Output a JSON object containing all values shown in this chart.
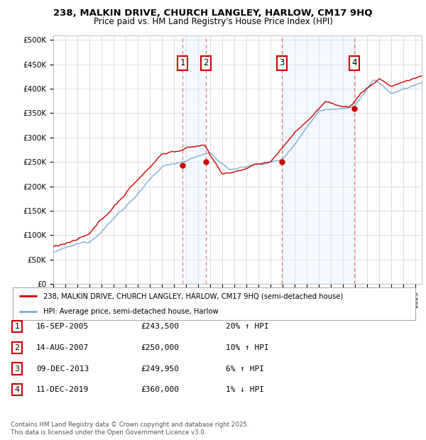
{
  "title1": "238, MALKIN DRIVE, CHURCH LANGLEY, HARLOW, CM17 9HQ",
  "title2": "Price paid vs. HM Land Registry's House Price Index (HPI)",
  "ylabel_ticks": [
    "£0",
    "£50K",
    "£100K",
    "£150K",
    "£200K",
    "£250K",
    "£300K",
    "£350K",
    "£400K",
    "£450K",
    "£500K"
  ],
  "ylim": [
    0,
    510000
  ],
  "xlim_start": 1995.0,
  "xlim_end": 2025.5,
  "legend_line1": "238, MALKIN DRIVE, CHURCH LANGLEY, HARLOW, CM17 9HQ (semi-detached house)",
  "legend_line2": "HPI: Average price, semi-detached house, Harlow",
  "transactions": [
    {
      "num": 1,
      "date": "16-SEP-2005",
      "price": "£243,500",
      "hpi": "20% ↑ HPI",
      "year": 2005.71
    },
    {
      "num": 2,
      "date": "14-AUG-2007",
      "price": "£250,000",
      "hpi": "10% ↑ HPI",
      "year": 2007.62
    },
    {
      "num": 3,
      "date": "09-DEC-2013",
      "price": "£249,950",
      "hpi": "6% ↑ HPI",
      "year": 2013.94
    },
    {
      "num": 4,
      "date": "11-DEC-2019",
      "price": "£360,000",
      "hpi": "1% ↓ HPI",
      "year": 2019.94
    }
  ],
  "transaction_prices": [
    243500,
    250000,
    249950,
    360000
  ],
  "footer1": "Contains HM Land Registry data © Crown copyright and database right 2025.",
  "footer2": "This data is licensed under the Open Government Licence v3.0.",
  "hpi_color": "#7bafd4",
  "property_color": "#cc0000",
  "box_color": "#cc0000",
  "vline_color": "#e08080",
  "shade_color": "#ddeeff",
  "grid_color": "#d0d0d0",
  "background_color": "#ffffff"
}
